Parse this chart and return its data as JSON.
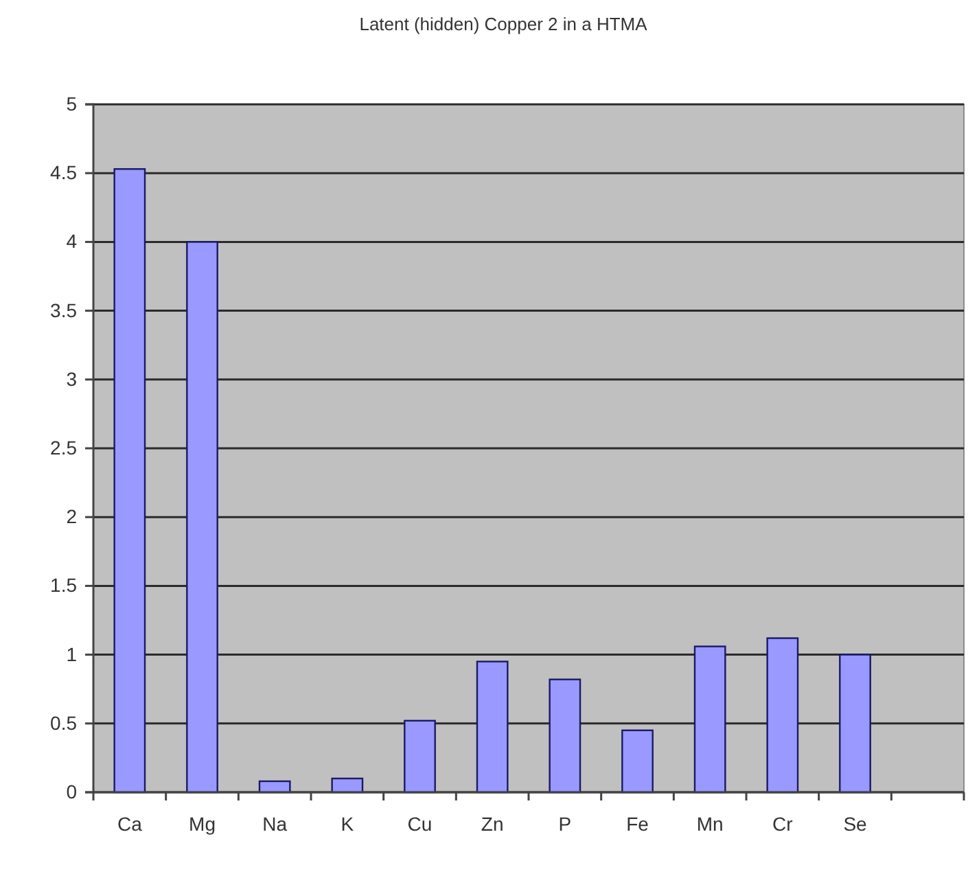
{
  "chart_data": {
    "type": "bar",
    "title": "Latent (hidden) Copper 2 in a HTMA",
    "categories": [
      "Ca",
      "Mg",
      "Na",
      "K",
      "Cu",
      "Zn",
      "P",
      "Fe",
      "Mn",
      "Cr",
      "Se",
      null
    ],
    "values": [
      4.53,
      4.0,
      0.08,
      0.1,
      0.52,
      0.95,
      0.82,
      0.45,
      1.06,
      1.12,
      1.0,
      null
    ],
    "color": "#9999ff",
    "ylim": [
      0,
      5
    ],
    "yticks": [
      0,
      0.5,
      1,
      1.5,
      2,
      2.5,
      3,
      3.5,
      4,
      4.5,
      5
    ],
    "grid": "y"
  }
}
